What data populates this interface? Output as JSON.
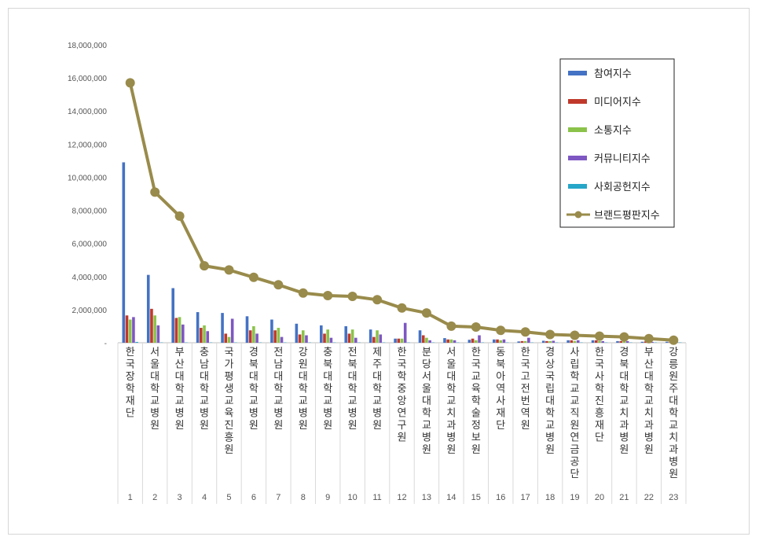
{
  "chart_data": {
    "type": "bar",
    "categories": [
      "한국장학재단",
      "서울대학교병원",
      "부산대학교병원",
      "충남대학교병원",
      "국가평생교육진흥원",
      "경북대학교병원",
      "전남대학교병원",
      "강원대학교병원",
      "충북대학교병원",
      "전북대학교병원",
      "제주대학교병원",
      "한국학중앙연구원",
      "분당서울대학교병원",
      "서울대학교치과병원",
      "한국교육학술정보원",
      "동북아역사재단",
      "한국고전번역원",
      "경상국립대학교병원",
      "사립학교교직원연금공단",
      "한국사학진흥재단",
      "경북대학교치과병원",
      "부산대학교치과병원",
      "강릉원주대학교치과병원"
    ],
    "ranks": [
      "1",
      "2",
      "3",
      "4",
      "5",
      "6",
      "7",
      "8",
      "9",
      "10",
      "11",
      "12",
      "13",
      "14",
      "15",
      "16",
      "17",
      "18",
      "19",
      "20",
      "21",
      "22",
      "23"
    ],
    "series": [
      {
        "name": "참여지수",
        "kind": "bar",
        "color": "#4472c4",
        "values": [
          10900000,
          4100000,
          3300000,
          1850000,
          1800000,
          1600000,
          1400000,
          1150000,
          1050000,
          1000000,
          800000,
          250000,
          750000,
          280000,
          180000,
          200000,
          80000,
          120000,
          150000,
          150000,
          100000,
          60000,
          60000
        ]
      },
      {
        "name": "미디어지수",
        "kind": "bar",
        "color": "#c0392b",
        "values": [
          1650000,
          2050000,
          1500000,
          900000,
          550000,
          750000,
          750000,
          500000,
          550000,
          550000,
          350000,
          250000,
          450000,
          200000,
          250000,
          200000,
          100000,
          100000,
          150000,
          150000,
          100000,
          80000,
          40000
        ]
      },
      {
        "name": "소통지수",
        "kind": "bar",
        "color": "#8bc34a",
        "values": [
          1400000,
          1650000,
          1550000,
          1050000,
          350000,
          1000000,
          900000,
          750000,
          800000,
          800000,
          750000,
          250000,
          300000,
          200000,
          150000,
          150000,
          100000,
          100000,
          100000,
          100000,
          80000,
          60000,
          40000
        ]
      },
      {
        "name": "커뮤니티지수",
        "kind": "bar",
        "color": "#7e57c2",
        "values": [
          1550000,
          1050000,
          1100000,
          700000,
          1450000,
          550000,
          350000,
          450000,
          300000,
          300000,
          500000,
          1200000,
          150000,
          150000,
          450000,
          200000,
          300000,
          120000,
          150000,
          100000,
          100000,
          50000,
          30000
        ]
      },
      {
        "name": "사회공헌지수",
        "kind": "bar",
        "color": "#26a6c9",
        "values": [
          50000,
          20000,
          20000,
          20000,
          20000,
          20000,
          20000,
          20000,
          20000,
          20000,
          20000,
          20000,
          20000,
          20000,
          20000,
          20000,
          20000,
          20000,
          20000,
          20000,
          20000,
          20000,
          20000
        ]
      },
      {
        "name": "브랜드평판지수",
        "kind": "line",
        "color": "#998b4b",
        "values": [
          15700000,
          9100000,
          7650000,
          4650000,
          4400000,
          3950000,
          3500000,
          3000000,
          2850000,
          2800000,
          2600000,
          2100000,
          1800000,
          1000000,
          950000,
          750000,
          650000,
          500000,
          450000,
          400000,
          350000,
          250000,
          150000
        ]
      }
    ],
    "yticks": [
      "-",
      "2,000,000",
      "4,000,000",
      "6,000,000",
      "8,000,000",
      "10,000,000",
      "12,000,000",
      "14,000,000",
      "16,000,000",
      "18,000,000"
    ],
    "ylim": [
      0,
      18000000
    ],
    "grid": false,
    "legend_position": "top-right",
    "title": "",
    "xlabel": "",
    "ylabel": ""
  }
}
